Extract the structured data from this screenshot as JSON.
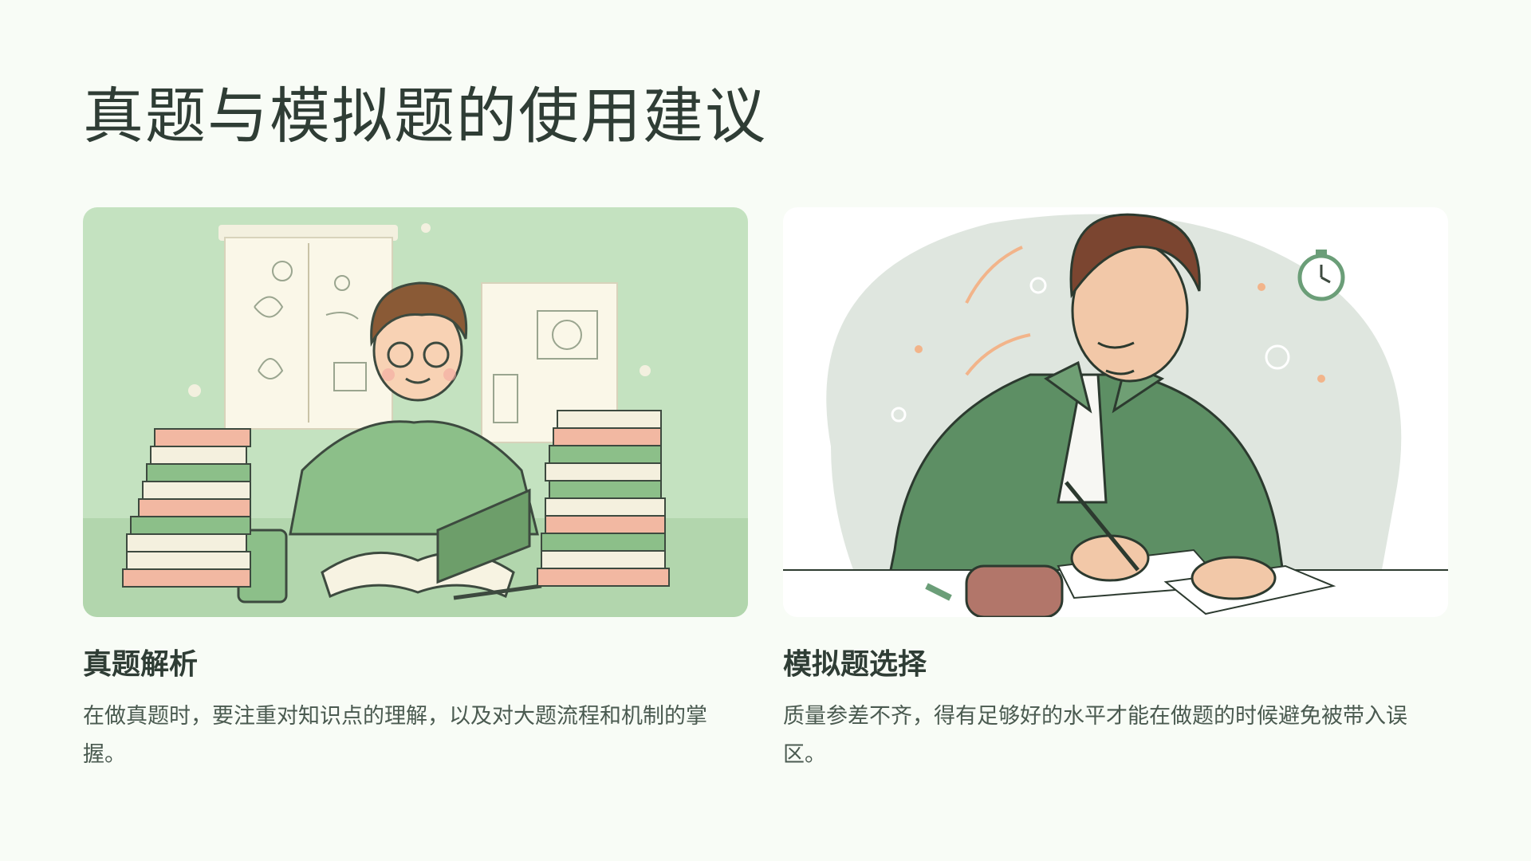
{
  "page": {
    "title": "真题与模拟题的使用建议"
  },
  "cards": [
    {
      "heading": "真题解析",
      "description": "在做真题时，要注重对知识点的理解，以及对大题流程和机制的掌握。",
      "image": "illustration-student-studying-with-books"
    },
    {
      "heading": "模拟题选择",
      "description": "质量参差不齐，得有足够好的水平才能在做题的时候避免被带入误区。",
      "image": "illustration-man-writing-exam-with-stopwatch"
    }
  ],
  "colors": {
    "background": "#f8fcf6",
    "accent_green": "#6b9e78",
    "card_green": "#c4e2c0",
    "text_dark": "#2f3d35"
  }
}
